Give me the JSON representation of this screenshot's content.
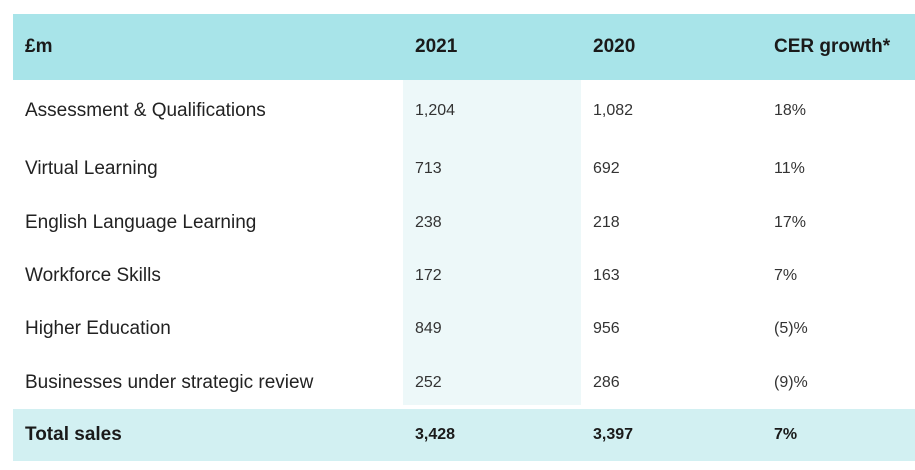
{
  "header": {
    "label": "£m",
    "col_2021": "2021",
    "col_2020": "2020",
    "col_growth": "CER growth*"
  },
  "rows": [
    {
      "label": "Assessment & Qualifications",
      "v2021": "1,204",
      "v2020": "1,082",
      "growth": "18%"
    },
    {
      "label": "Virtual Learning",
      "v2021": "713",
      "v2020": "692",
      "growth": "11%"
    },
    {
      "label": "English Language Learning",
      "v2021": "238",
      "v2020": "218",
      "growth": "17%"
    },
    {
      "label": "Workforce Skills",
      "v2021": "172",
      "v2020": "163",
      "growth": "7%"
    },
    {
      "label": "Higher Education",
      "v2021": "849",
      "v2020": "956",
      "growth": "(5)%"
    },
    {
      "label": "Businesses under strategic review",
      "v2021": "252",
      "v2020": "286",
      "growth": "(9)%"
    }
  ],
  "total": {
    "label": "Total sales",
    "v2021": "3,428",
    "v2020": "3,397",
    "growth": "7%"
  },
  "colors": {
    "header_bg": "#a8e4e9",
    "total_bg": "#d2f0f2",
    "column_2021_bg": "#edf8f9"
  }
}
